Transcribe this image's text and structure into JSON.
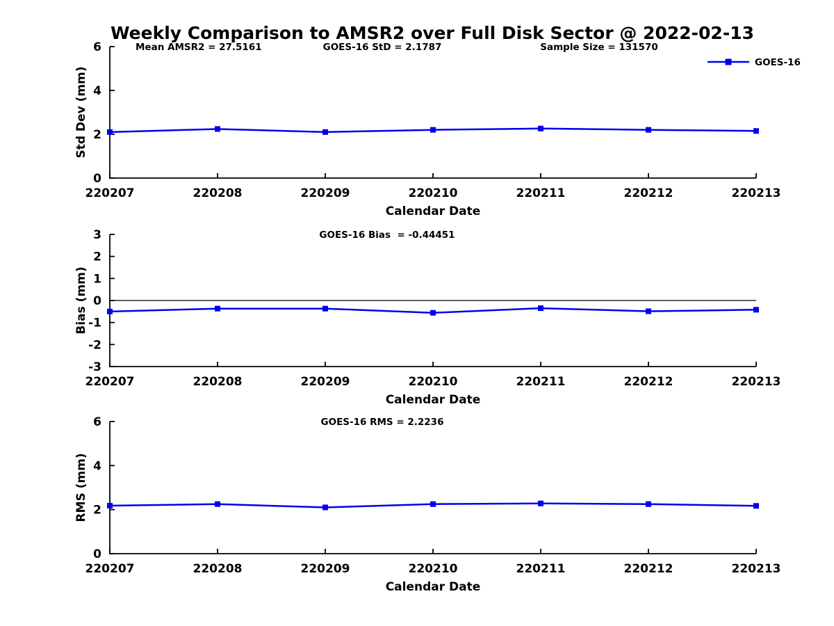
{
  "title": "Weekly Comparison to AMSR2 over Full Disk Sector @ 2022-02-13",
  "colors": {
    "series_line": "#0000ee",
    "axis": "#000000",
    "zero_line": "#000000",
    "text": "#000000",
    "background": "#ffffff"
  },
  "legend": {
    "label": "GOES-16",
    "position": "top-right-of-first-panel"
  },
  "chart_data": [
    {
      "type": "line",
      "name": "std-dev",
      "categories": [
        "220207",
        "220208",
        "220209",
        "220210",
        "220211",
        "220212",
        "220213"
      ],
      "series": [
        {
          "name": "GOES-16",
          "values": [
            2.1,
            2.24,
            2.1,
            2.2,
            2.26,
            2.2,
            2.15
          ]
        }
      ],
      "xlabel": "Calendar Date",
      "ylabel": "Std Dev (mm)",
      "ylim": [
        0,
        6
      ],
      "yticks": [
        0,
        2,
        4,
        6
      ],
      "zero_line": false,
      "grid": false,
      "marker": "square",
      "annotations": [
        "Mean AMSR2 = 27.5161",
        "GOES-16 StD = 2.1787",
        "Sample Size = 131570"
      ],
      "legend_labels": [
        "GOES-16"
      ]
    },
    {
      "type": "line",
      "name": "bias",
      "categories": [
        "220207",
        "220208",
        "220209",
        "220210",
        "220211",
        "220212",
        "220213"
      ],
      "series": [
        {
          "name": "GOES-16",
          "values": [
            -0.5,
            -0.37,
            -0.37,
            -0.56,
            -0.35,
            -0.49,
            -0.42
          ]
        }
      ],
      "xlabel": "Calendar Date",
      "ylabel": "Bias (mm)",
      "ylim": [
        -3,
        3
      ],
      "yticks": [
        -3,
        -2,
        -1,
        0,
        1,
        2,
        3
      ],
      "zero_line": true,
      "grid": false,
      "marker": "square",
      "annotations": [
        "GOES-16 Bias  = -0.44451"
      ],
      "legend_labels": []
    },
    {
      "type": "line",
      "name": "rms",
      "categories": [
        "220207",
        "220208",
        "220209",
        "220210",
        "220211",
        "220212",
        "220213"
      ],
      "series": [
        {
          "name": "GOES-16",
          "values": [
            2.18,
            2.25,
            2.1,
            2.25,
            2.28,
            2.25,
            2.17
          ]
        }
      ],
      "xlabel": "Calendar Date",
      "ylabel": "RMS (mm)",
      "ylim": [
        0,
        6
      ],
      "yticks": [
        0,
        2,
        4,
        6
      ],
      "zero_line": false,
      "grid": false,
      "marker": "square",
      "annotations": [
        "GOES-16 RMS = 2.2236"
      ],
      "legend_labels": []
    }
  ]
}
